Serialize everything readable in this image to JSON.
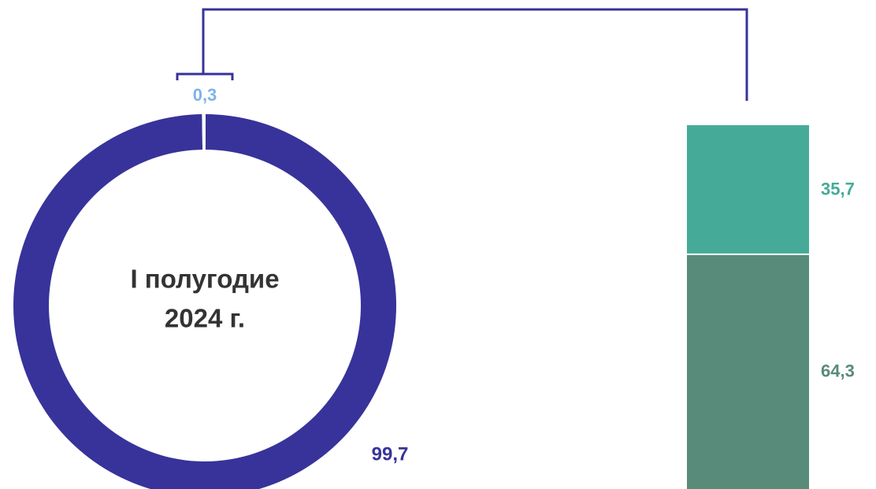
{
  "chart_data": [
    {
      "type": "donut",
      "center_label": [
        "I  полугодие",
        "2024 г."
      ],
      "values": [
        99.7,
        0.3
      ],
      "value_labels": [
        "99,7",
        "0,3"
      ],
      "colors": [
        "#37339a",
        "#ffffff"
      ],
      "label_colors": [
        "#37339a",
        "#7fb3e8"
      ]
    },
    {
      "type": "stacked_bar",
      "values": [
        35.7,
        64.3
      ],
      "value_labels": [
        "35,7",
        "64,3"
      ],
      "colors": [
        "#45ab98",
        "#588b79"
      ]
    }
  ]
}
